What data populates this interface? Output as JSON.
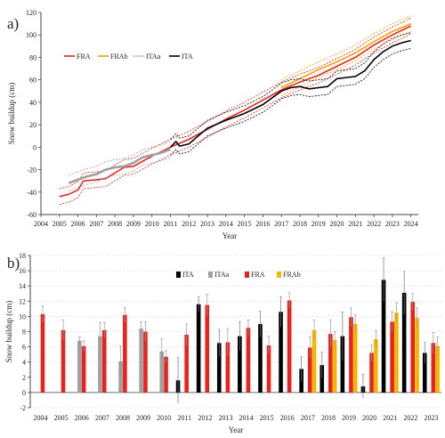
{
  "chart_data": [
    {
      "panel": "a)",
      "type": "line",
      "xlabel": "Year",
      "ylabel": "Snow buildup (cm)",
      "xlim": [
        2004,
        2024.4
      ],
      "ylim": [
        -60,
        120
      ],
      "xticks": [
        2004,
        2005,
        2006,
        2007,
        2008,
        2009,
        2010,
        2011,
        2012,
        2013,
        2014,
        2015,
        2016,
        2017,
        2018,
        2019,
        2020,
        2021,
        2022,
        2023,
        2024
      ],
      "yticks": [
        -60,
        -40,
        -20,
        0,
        20,
        40,
        60,
        80,
        100,
        120
      ],
      "legend_position": "top-left",
      "series": [
        {
          "name": "FRA",
          "color": "#e8231c",
          "x": [
            2005,
            2005.5,
            2006,
            2006.3,
            2007,
            2007.5,
            2008,
            2008.5,
            2009,
            2010,
            2011,
            2012,
            2013,
            2014,
            2015,
            2016,
            2017,
            2018,
            2019,
            2020,
            2021,
            2022,
            2023,
            2024
          ],
          "y": [
            -44,
            -42,
            -38,
            -30,
            -29,
            -28,
            -23,
            -18,
            -17,
            -8,
            0,
            7,
            16,
            25,
            33,
            42,
            51,
            58,
            64,
            72,
            80,
            91,
            100,
            108
          ]
        },
        {
          "name": "FRAb",
          "color": "#f5a000",
          "x": [
            2017,
            2018,
            2019,
            2020,
            2021,
            2022,
            2023,
            2024
          ],
          "y": [
            53,
            61,
            69,
            76,
            84,
            94,
            103,
            110
          ]
        },
        {
          "name": "ITAa",
          "color": "#a0a0a0",
          "x": [
            2005.5,
            2006,
            2006.5,
            2007,
            2007.5,
            2008,
            2008.5,
            2009,
            2009.5,
            2010,
            2010.5,
            2011
          ],
          "y": [
            -32,
            -29,
            -26,
            -24,
            -20,
            -18,
            -17,
            -14,
            -9,
            -7,
            -5,
            -2
          ]
        },
        {
          "name": "ITA",
          "color": "#000000",
          "x": [
            2011,
            2011.3,
            2011.5,
            2012,
            2012.5,
            2013,
            2014,
            2015,
            2016,
            2017,
            2017.5,
            2018,
            2018.5,
            2019,
            2019.5,
            2020,
            2021,
            2021.5,
            2022,
            2022.5,
            2023,
            2023.5,
            2024
          ],
          "y": [
            0,
            5,
            1,
            3,
            10,
            17,
            24,
            30,
            38,
            50,
            53,
            54,
            52,
            53,
            54,
            61,
            63,
            68,
            78,
            85,
            90,
            93,
            95
          ]
        }
      ]
    },
    {
      "panel": "b)",
      "type": "bar",
      "xlabel": "Year",
      "ylabel": "Snow buildup (cm)",
      "ylim": [
        -2,
        18
      ],
      "yticks": [
        -2,
        0,
        2,
        4,
        6,
        8,
        10,
        12,
        14,
        16,
        18
      ],
      "legend_position": "top-center",
      "categories": [
        "2004",
        "2005",
        "2006",
        "2007",
        "2008",
        "2009",
        "2010",
        "2011",
        "2012",
        "2013",
        "2014",
        "2015",
        "2016",
        "2017",
        "2018",
        "2019",
        "2020",
        "2021",
        "2022",
        "2023"
      ],
      "series": [
        {
          "name": "ITA",
          "color": "#000000",
          "values": [
            null,
            null,
            null,
            null,
            null,
            null,
            null,
            1.6,
            11.6,
            6.5,
            7.4,
            9.0,
            10.6,
            3.1,
            3.6,
            7.4,
            0.8,
            14.8,
            13.1,
            5.2
          ],
          "errors": [
            null,
            null,
            null,
            null,
            null,
            null,
            null,
            3.0,
            1.0,
            1.8,
            1.9,
            1.7,
            2.0,
            1.6,
            1.7,
            3.2,
            1.6,
            2.9,
            2.8,
            1.4
          ]
        },
        {
          "name": "ITAa",
          "color": "#a0a0a0",
          "values": [
            null,
            null,
            6.8,
            7.4,
            4.1,
            8.4,
            5.4,
            null,
            null,
            null,
            null,
            null,
            null,
            null,
            null,
            null,
            null,
            null,
            null,
            null
          ],
          "errors": [
            null,
            null,
            0.5,
            1.8,
            2.0,
            0.9,
            1.7,
            null,
            null,
            null,
            null,
            null,
            null,
            null,
            null,
            null,
            null,
            null,
            null,
            null
          ]
        },
        {
          "name": "FRA",
          "color": "#e8231c",
          "values": [
            10.3,
            8.2,
            6.1,
            8.2,
            10.2,
            8.0,
            4.7,
            7.6,
            11.5,
            6.6,
            8.5,
            6.2,
            12.1,
            5.9,
            7.7,
            9.9,
            5.2,
            9.3,
            11.9,
            6.5
          ],
          "errors": [
            1.1,
            1.3,
            0.7,
            1.0,
            1.0,
            1.3,
            0.8,
            1.4,
            1.4,
            1.8,
            1.0,
            1.2,
            1.0,
            1.4,
            1.8,
            1.2,
            1.1,
            1.3,
            1.1,
            1.4
          ]
        },
        {
          "name": "FRAb",
          "color": "#f5b800",
          "values": [
            null,
            null,
            null,
            null,
            null,
            null,
            null,
            null,
            null,
            null,
            null,
            null,
            null,
            8.2,
            6.9,
            9.0,
            7.0,
            10.5,
            9.8,
            6.1
          ],
          "errors": [
            null,
            null,
            null,
            null,
            null,
            null,
            null,
            null,
            null,
            null,
            null,
            null,
            null,
            1.3,
            1.1,
            1.2,
            1.1,
            1.3,
            1.3,
            1.2
          ]
        }
      ]
    }
  ]
}
